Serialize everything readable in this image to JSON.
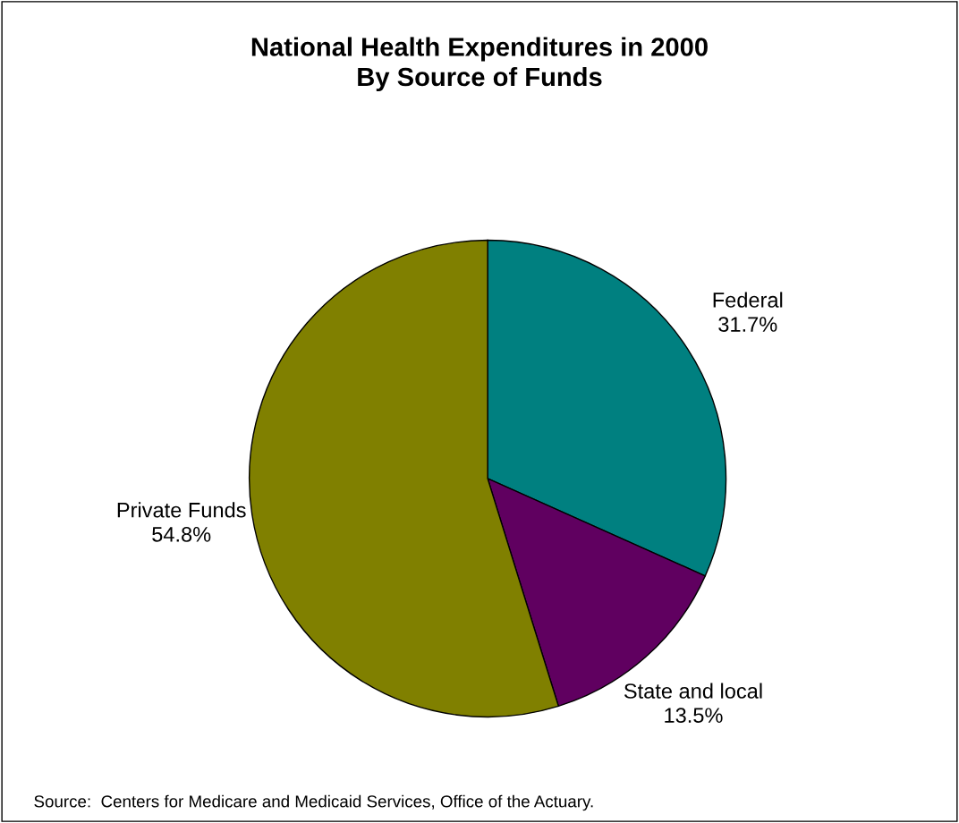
{
  "chart_data": {
    "type": "pie",
    "title": "National Health Expenditures in 2000\nBy Source of Funds",
    "categories": [
      "Federal",
      "State and local",
      "Private Funds"
    ],
    "values": [
      31.7,
      13.5,
      54.8
    ],
    "colors": [
      "#008080",
      "#600060",
      "#808000"
    ],
    "value_labels": [
      "31.7%",
      "13.5%",
      "54.8%"
    ],
    "annotations": [
      "Source:  Centers for Medicare and Medicaid Services, Office of the Actuary."
    ]
  }
}
